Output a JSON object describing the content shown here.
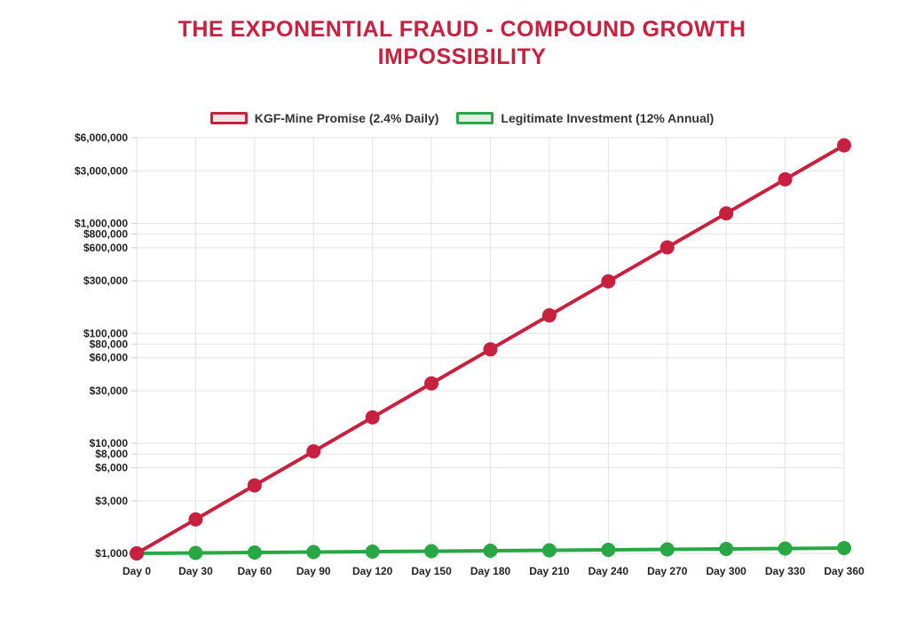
{
  "chart_data": {
    "type": "line",
    "title": "THE EXPONENTIAL FRAUD - COMPOUND GROWTH IMPOSSIBILITY",
    "title_lines": [
      "THE EXPONENTIAL FRAUD - COMPOUND GROWTH",
      "IMPOSSIBILITY"
    ],
    "categories": [
      "Day 0",
      "Day 30",
      "Day 60",
      "Day 90",
      "Day 120",
      "Day 150",
      "Day 180",
      "Day 210",
      "Day 240",
      "Day 270",
      "Day 300",
      "Day 330",
      "Day 360"
    ],
    "x": [
      0,
      30,
      60,
      90,
      120,
      150,
      180,
      210,
      240,
      270,
      300,
      330,
      360
    ],
    "yscale": "log",
    "ylim": [
      1000,
      6000000
    ],
    "y_ticks": [
      {
        "value": 1000,
        "label": "$1,000"
      },
      {
        "value": 3000,
        "label": "$3,000"
      },
      {
        "value": 6000,
        "label": "$6,000"
      },
      {
        "value": 8000,
        "label": "$8,000"
      },
      {
        "value": 10000,
        "label": "$10,000"
      },
      {
        "value": 30000,
        "label": "$30,000"
      },
      {
        "value": 60000,
        "label": "$60,000"
      },
      {
        "value": 80000,
        "label": "$80,000"
      },
      {
        "value": 100000,
        "label": "$100,000"
      },
      {
        "value": 300000,
        "label": "$300,000"
      },
      {
        "value": 600000,
        "label": "$600,000"
      },
      {
        "value": 800000,
        "label": "$800,000"
      },
      {
        "value": 1000000,
        "label": "$1,000,000"
      },
      {
        "value": 3000000,
        "label": "$3,000,000"
      },
      {
        "value": 6000000,
        "label": "$6,000,000"
      }
    ],
    "grid": true,
    "legend_position": "top-center",
    "series": [
      {
        "name": "KGF-Mine Promise (2.4% Daily)",
        "color": "#c8203f",
        "fill": "#f9e1e6",
        "values": [
          1000,
          2037,
          4150,
          8456,
          17226,
          35094,
          71494,
          145648,
          296716,
          604474,
          1231434,
          2508671,
          5110661
        ]
      },
      {
        "name": "Legitimate Investment (12% Annual)",
        "color": "#28a745",
        "fill": "#dff3e3",
        "values": [
          1000,
          1009,
          1019,
          1028,
          1038,
          1048,
          1057,
          1067,
          1077,
          1087,
          1097,
          1108,
          1118
        ]
      }
    ]
  }
}
